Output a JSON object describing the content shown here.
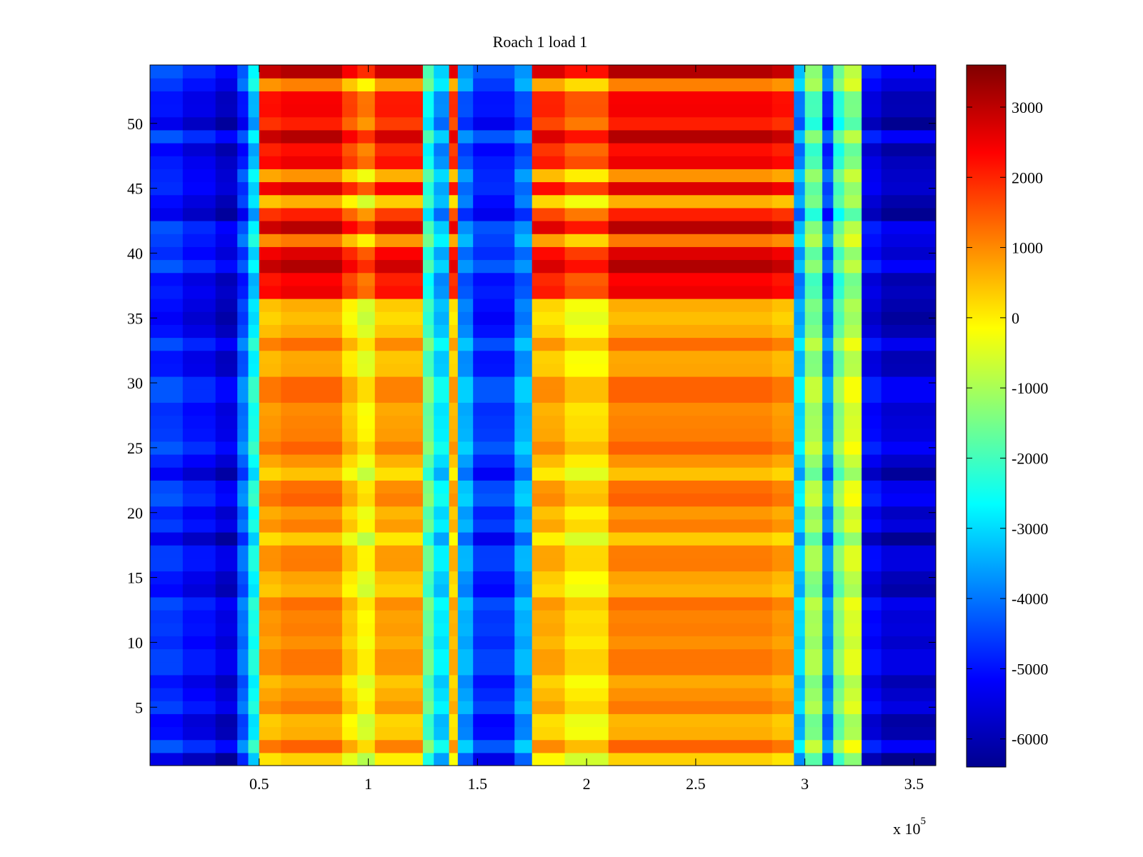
{
  "chart_data": {
    "type": "heatmap",
    "title": "Roach 1 load 1",
    "xlabel": "",
    "ylabel": "",
    "x_range": [
      0,
      360000
    ],
    "y_range": [
      0.5,
      54.5
    ],
    "x_ticks": [
      50000,
      100000,
      150000,
      200000,
      250000,
      300000,
      350000
    ],
    "x_tick_labels": [
      "0.5",
      "1",
      "1.5",
      "2",
      "2.5",
      "3",
      "3.5"
    ],
    "x_multiplier_label": "x 10",
    "x_multiplier_exponent": "5",
    "y_ticks": [
      5,
      10,
      15,
      20,
      25,
      30,
      35,
      40,
      45,
      50
    ],
    "y_tick_labels": [
      "5",
      "10",
      "15",
      "20",
      "25",
      "30",
      "35",
      "40",
      "45",
      "50"
    ],
    "colormap": "jet",
    "clim": [
      -6400,
      3600
    ],
    "colorbar_ticks": [
      3000,
      2000,
      1000,
      0,
      -1000,
      -2000,
      -3000,
      -4000,
      -5000,
      -6000
    ],
    "colorbar_tick_labels": [
      "3000",
      "2000",
      "1000",
      "0",
      "-1000",
      "-2000",
      "-3000",
      "-4000",
      "-5000",
      "-6000"
    ],
    "grid": false,
    "column_bands": [
      {
        "x": [
          0,
          15000
        ],
        "value": -4800
      },
      {
        "x": [
          15000,
          30000
        ],
        "value": -5200
      },
      {
        "x": [
          30000,
          40000
        ],
        "value": -5600
      },
      {
        "x": [
          40000,
          45000
        ],
        "value": -4200
      },
      {
        "x": [
          45000,
          50000
        ],
        "value": -2600
      },
      {
        "x": [
          50000,
          60000
        ],
        "value": 700
      },
      {
        "x": [
          60000,
          88000
        ],
        "value": 900
      },
      {
        "x": [
          88000,
          95000
        ],
        "value": 200
      },
      {
        "x": [
          95000,
          103000
        ],
        "value": -300
      },
      {
        "x": [
          103000,
          125000
        ],
        "value": 600
      },
      {
        "x": [
          125000,
          130000
        ],
        "value": -1800
      },
      {
        "x": [
          130000,
          137000
        ],
        "value": -3000
      },
      {
        "x": [
          137000,
          141000
        ],
        "value": 400
      },
      {
        "x": [
          141000,
          148000
        ],
        "value": -3600
      },
      {
        "x": [
          148000,
          167000
        ],
        "value": -4800
      },
      {
        "x": [
          167000,
          175000
        ],
        "value": -3600
      },
      {
        "x": [
          175000,
          190000
        ],
        "value": 500
      },
      {
        "x": [
          190000,
          210000
        ],
        "value": 0
      },
      {
        "x": [
          210000,
          285000
        ],
        "value": 900
      },
      {
        "x": [
          285000,
          295000
        ],
        "value": 700
      },
      {
        "x": [
          295000,
          300000
        ],
        "value": -3200
      },
      {
        "x": [
          300000,
          308000
        ],
        "value": -1200
      },
      {
        "x": [
          308000,
          313000
        ],
        "value": -4000
      },
      {
        "x": [
          313000,
          318000
        ],
        "value": -1500
      },
      {
        "x": [
          318000,
          326000
        ],
        "value": -700
      },
      {
        "x": [
          326000,
          335000
        ],
        "value": -5300
      },
      {
        "x": [
          335000,
          360000
        ],
        "value": -5700
      }
    ],
    "hot_rows": [
      37,
      38,
      39,
      40,
      42,
      43,
      45,
      47,
      48,
      49,
      50,
      51,
      52,
      54
    ]
  }
}
